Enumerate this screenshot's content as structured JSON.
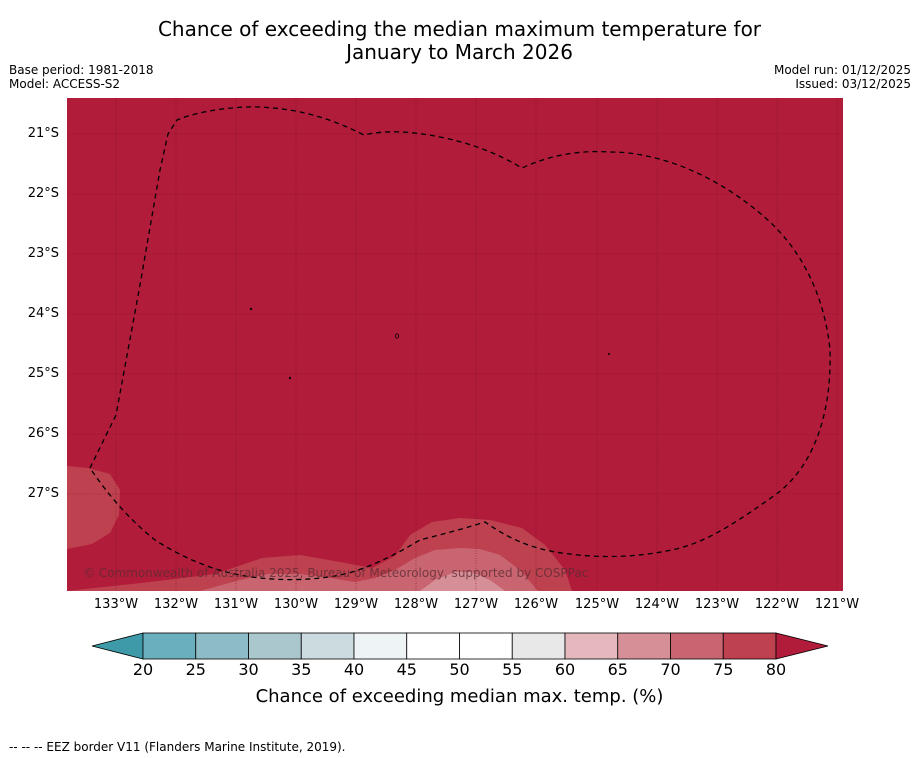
{
  "title_line1": "Chance of exceeding the median maximum temperature for",
  "title_line2": "January to March 2026",
  "base_period": "Base period: 1981-2018",
  "model": "Model: ACCESS-S2",
  "model_run": "Model run: 01/12/2025",
  "issued": "Issued: 03/12/2025",
  "copyright": "© Commonwealth of Australia 2025, Bureau of Meteorology, supported by COSPPac",
  "lat_labels": [
    "21°S",
    "22°S",
    "23°S",
    "24°S",
    "25°S",
    "26°S",
    "27°S"
  ],
  "lon_labels": [
    "133°W",
    "132°W",
    "131°W",
    "130°W",
    "129°W",
    "128°W",
    "127°W",
    "126°W",
    "125°W",
    "124°W",
    "123°W",
    "122°W",
    "121°W"
  ],
  "colorbar": {
    "title": "Chance of exceeding median max. temp. (%)",
    "ticks": [
      "20",
      "25",
      "30",
      "35",
      "40",
      "45",
      "50",
      "55",
      "60",
      "65",
      "70",
      "75",
      "80"
    ],
    "colors": [
      "#3e9aa8",
      "#6aafbe",
      "#8dbcc6",
      "#a9c7cc",
      "#cbdbdf",
      "#eef3f5",
      "#ffffff",
      "#ffffff",
      "#e8e8e8",
      "#e4b8bd",
      "#d78f97",
      "#c96570",
      "#be4150",
      "#b01c39"
    ]
  },
  "map_colors": {
    "dominant": "#b01c39",
    "band_75_80": "#be4150",
    "band_70_75": "#c96570",
    "band_65_70": "#d78f97"
  },
  "footer": "--  --  -- EEZ border V11 (Flanders Marine Institute, 2019)."
}
